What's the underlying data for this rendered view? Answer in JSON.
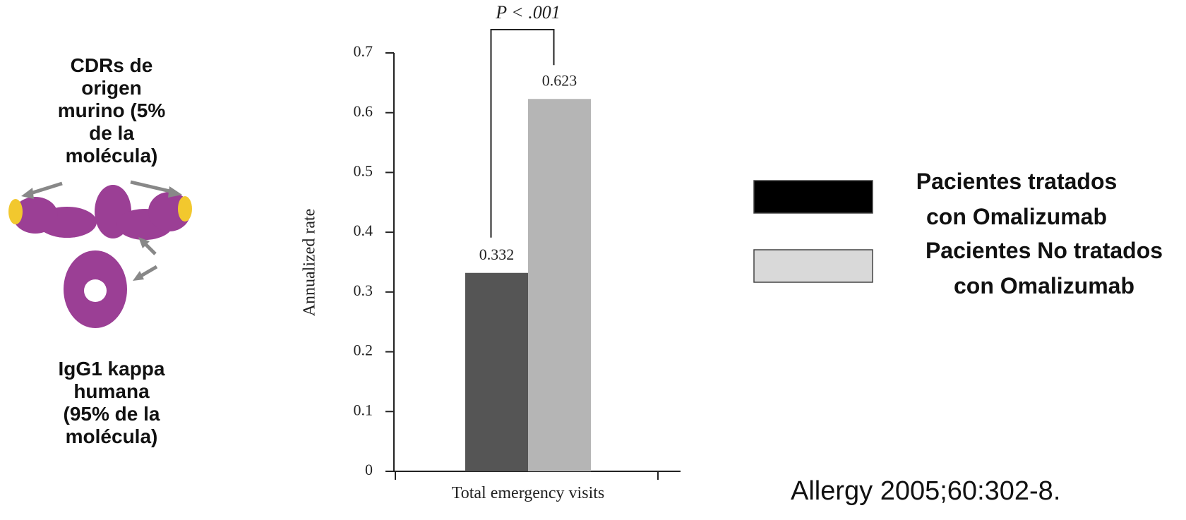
{
  "chart_data": {
    "type": "bar",
    "annotation": "P < .001",
    "y_label": "Annualized rate",
    "categories": [
      "Total emergency visits"
    ],
    "series": [
      {
        "name": "Pacientes tratados con Omalizumab",
        "color": "#555555",
        "legend_color": "#000000",
        "values": [
          0.332
        ]
      },
      {
        "name": "Pacientes No tratados con Omalizumab",
        "color": "#b5b5b5",
        "legend_color": "#d9d9d9",
        "values": [
          0.623
        ]
      }
    ],
    "ylim": [
      0,
      0.7
    ],
    "yticks": [
      0,
      0.1,
      0.2,
      0.3,
      0.4,
      0.5,
      0.6,
      0.7
    ],
    "grid": false
  },
  "side_labels": {
    "top": "CDRs de origen murino (5% de la molécula)",
    "bottom": "IgG1 kappa humana (95% de la molécula)"
  },
  "citation": "Allergy 2005;60:302-8."
}
